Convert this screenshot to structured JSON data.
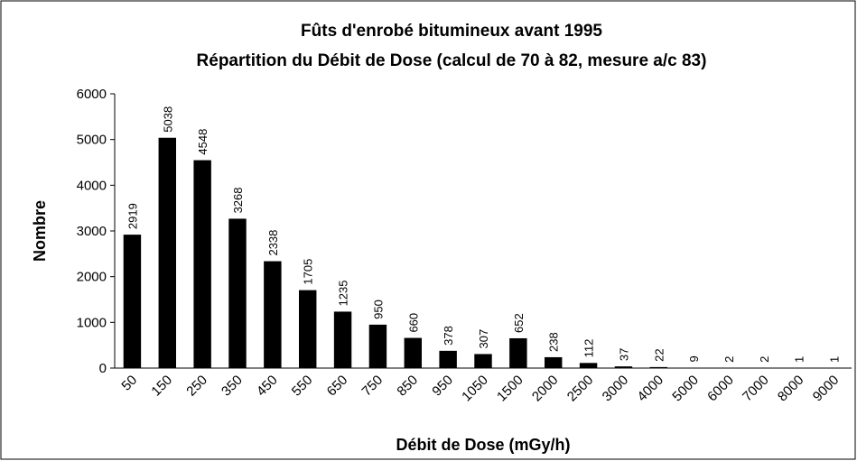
{
  "chart_data": {
    "type": "bar",
    "title": "Fûts d'enrobé bitumineux avant 1995",
    "subtitle": "Répartition du Débit de Dose (calcul de 70 à 82, mesure a/c 83)",
    "x_label": "Débit de Dose (mGy/h)",
    "y_label": "Nombre",
    "categories": [
      "50",
      "150",
      "250",
      "350",
      "450",
      "550",
      "650",
      "750",
      "850",
      "950",
      "1050",
      "1500",
      "2000",
      "2500",
      "3000",
      "4000",
      "5000",
      "6000",
      "7000",
      "8000",
      "9000"
    ],
    "values": [
      2919,
      5038,
      4548,
      3268,
      2338,
      1705,
      1235,
      950,
      660,
      378,
      307,
      652,
      238,
      112,
      37,
      22,
      9,
      2,
      2,
      1,
      1
    ],
    "color": "#000000",
    "ylim": [
      0,
      6000
    ],
    "yticks": [
      0,
      1000,
      2000,
      3000,
      4000,
      5000,
      6000
    ],
    "grid": false
  }
}
